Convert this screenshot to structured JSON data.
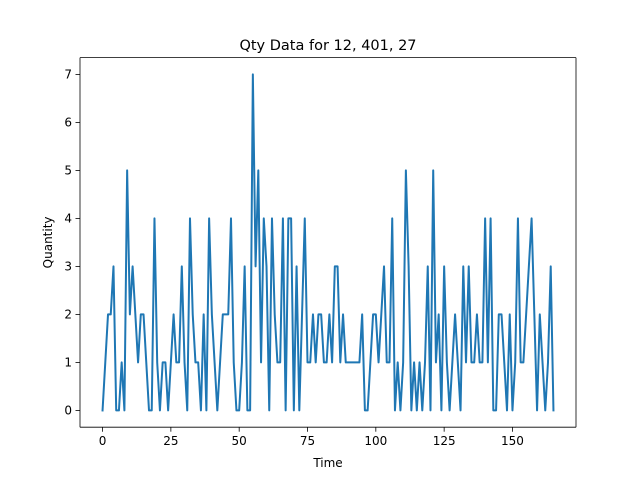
{
  "chart_data": {
    "type": "line",
    "title": "Qty Data for 12, 401, 27",
    "xlabel": "Time",
    "ylabel": "Quantity",
    "xlim": [
      -8.25,
      173.25
    ],
    "ylim": [
      -0.35,
      7.35
    ],
    "x_ticks": [
      0,
      25,
      50,
      75,
      100,
      125,
      150
    ],
    "y_ticks": [
      0,
      1,
      2,
      3,
      4,
      5,
      6,
      7
    ],
    "grid": false,
    "series": [
      {
        "color": "#1f77b4",
        "x": [
          0,
          1,
          2,
          3,
          4,
          5,
          6,
          7,
          8,
          9,
          10,
          11,
          12,
          13,
          14,
          15,
          16,
          17,
          18,
          19,
          20,
          21,
          22,
          23,
          24,
          25,
          26,
          27,
          28,
          29,
          30,
          31,
          32,
          33,
          34,
          35,
          36,
          37,
          38,
          39,
          40,
          41,
          42,
          43,
          44,
          45,
          46,
          47,
          48,
          49,
          50,
          51,
          52,
          53,
          54,
          55,
          56,
          57,
          58,
          59,
          60,
          61,
          62,
          63,
          64,
          65,
          66,
          67,
          68,
          69,
          70,
          71,
          72,
          73,
          74,
          75,
          76,
          77,
          78,
          79,
          80,
          81,
          82,
          83,
          84,
          85,
          86,
          87,
          88,
          89,
          90,
          91,
          92,
          93,
          94,
          95,
          96,
          97,
          98,
          99,
          100,
          101,
          102,
          103,
          104,
          105,
          106,
          107,
          108,
          109,
          110,
          111,
          112,
          113,
          114,
          115,
          116,
          117,
          118,
          119,
          120,
          121,
          122,
          123,
          124,
          125,
          126,
          127,
          128,
          129,
          130,
          131,
          132,
          133,
          134,
          135,
          136,
          137,
          138,
          139,
          140,
          141,
          142,
          143,
          144,
          145,
          146,
          147,
          148,
          149,
          150,
          151,
          152,
          153,
          154,
          155,
          156,
          157,
          158,
          159,
          160,
          161,
          162,
          163,
          164,
          165
        ],
        "y": [
          0,
          1,
          2,
          2,
          3,
          0,
          0,
          1,
          0,
          5,
          2,
          3,
          2,
          1,
          2,
          2,
          1,
          0,
          0,
          4,
          1,
          0,
          1,
          1,
          0,
          1,
          2,
          1,
          1,
          3,
          1,
          0,
          4,
          2,
          1,
          1,
          0,
          2,
          0,
          4,
          2,
          1,
          0,
          1,
          2,
          2,
          2,
          4,
          1,
          0,
          0,
          1,
          3,
          0,
          0,
          7,
          3,
          5,
          1,
          4,
          3,
          0,
          4,
          2,
          1,
          1,
          4,
          0,
          4,
          4,
          0,
          3,
          0,
          2,
          4,
          1,
          1,
          2,
          1,
          2,
          2,
          1,
          1,
          2,
          1,
          3,
          3,
          1,
          2,
          1,
          1,
          1,
          1,
          1,
          1,
          2,
          0,
          0,
          1,
          2,
          2,
          1,
          2,
          3,
          1,
          1,
          4,
          0,
          1,
          0,
          1,
          5,
          3,
          0,
          1,
          0,
          1,
          0,
          1,
          3,
          0,
          5,
          1,
          2,
          0,
          3,
          1,
          0,
          1,
          2,
          1,
          0,
          3,
          1,
          3,
          1,
          1,
          2,
          1,
          1,
          4,
          1,
          4,
          0,
          0,
          2,
          2,
          1,
          0,
          2,
          0,
          1,
          4,
          1,
          1,
          2,
          3,
          4,
          2,
          0,
          2,
          1,
          0,
          1,
          3,
          0
        ]
      }
    ]
  }
}
